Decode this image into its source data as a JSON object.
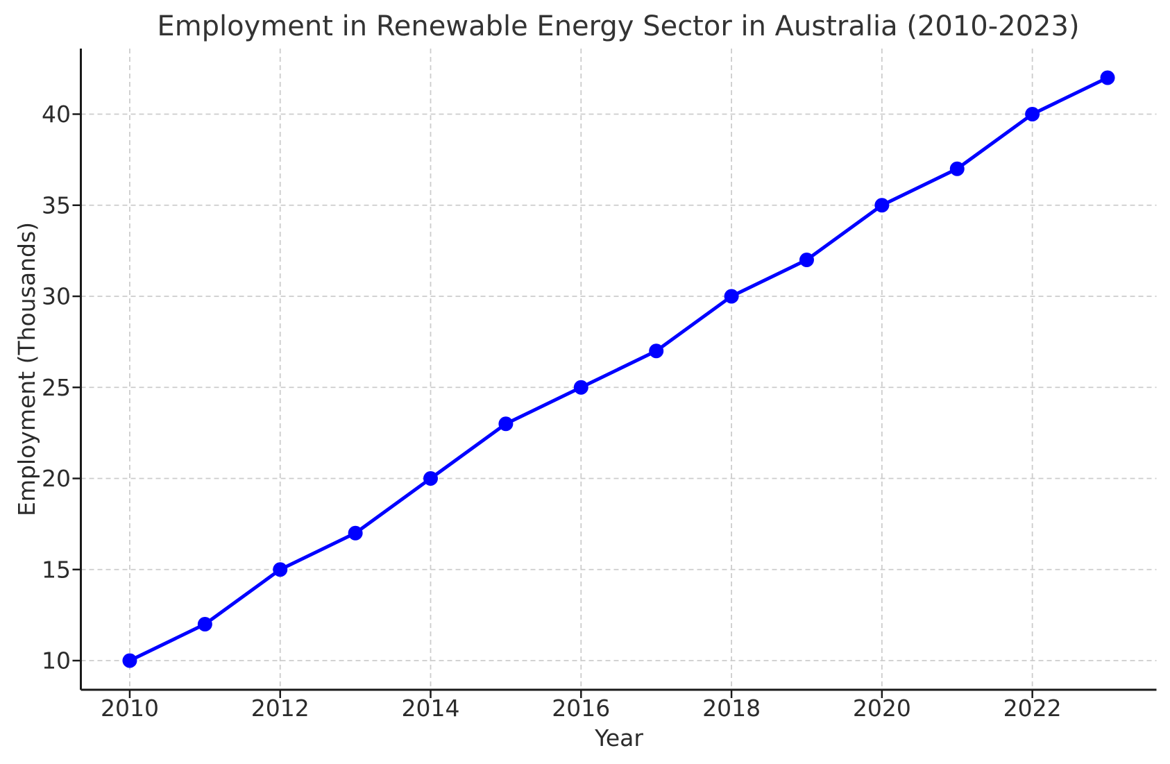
{
  "chart_data": {
    "type": "line",
    "title": "Employment in Renewable Energy Sector in Australia (2010-2023)",
    "xlabel": "Year",
    "ylabel": "Employment (Thousands)",
    "x": [
      2010,
      2011,
      2012,
      2013,
      2014,
      2015,
      2016,
      2017,
      2018,
      2019,
      2020,
      2021,
      2022,
      2023
    ],
    "series": [
      {
        "name": "Employment",
        "values": [
          10,
          12,
          15,
          17,
          20,
          23,
          25,
          27,
          30,
          32,
          35,
          37,
          40,
          42
        ]
      }
    ],
    "xlim": [
      2009.35,
      2023.65
    ],
    "ylim": [
      8.4,
      43.6
    ],
    "xticks": [
      2010,
      2012,
      2014,
      2016,
      2018,
      2020,
      2022
    ],
    "yticks": [
      10,
      15,
      20,
      25,
      30,
      35,
      40
    ],
    "grid": true,
    "grid_style": "dashed",
    "legend": "none",
    "line_color": "#0000ff",
    "marker": "circle",
    "marker_color": "#0000ff",
    "grid_color": "#cccccc",
    "spine_color": "#1a1a1a",
    "text_color": "#2b2b2b",
    "title_color": "#333333",
    "background": "#ffffff"
  }
}
